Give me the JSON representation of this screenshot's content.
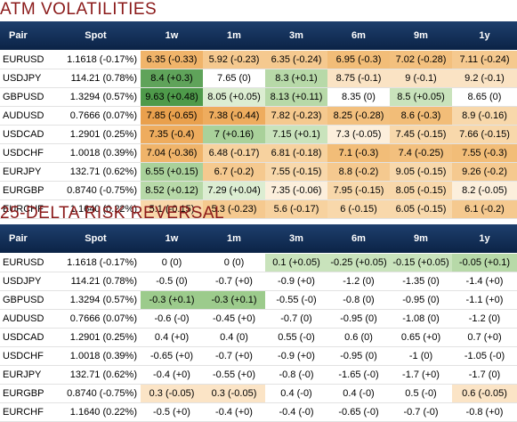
{
  "atm": {
    "title": "ATM VOLATILITIES",
    "headers": [
      "Pair",
      "Spot",
      "1w",
      "1m",
      "3m",
      "6m",
      "9m",
      "1y"
    ],
    "rows": [
      {
        "pair": "EURUSD",
        "spot": "1.1618 (-0.17%)",
        "cells": [
          {
            "text": "6.35 (-0.33)",
            "color": "#f0b46a"
          },
          {
            "text": "5.92 (-0.23)",
            "color": "#f5c98f"
          },
          {
            "text": "6.35 (-0.24)",
            "color": "#f5c98f"
          },
          {
            "text": "6.95 (-0.3)",
            "color": "#f2bd78"
          },
          {
            "text": "7.02 (-0.28)",
            "color": "#f3c07e"
          },
          {
            "text": "7.11 (-0.24)",
            "color": "#f5c98f"
          }
        ]
      },
      {
        "pair": "USDJPY",
        "spot": "114.21 (0.78%)",
        "cells": [
          {
            "text": "8.4 (+0.3)",
            "color": "#5fa35a"
          },
          {
            "text": "7.65 (0)",
            "color": "#ffffff"
          },
          {
            "text": "8.3 (+0.1)",
            "color": "#b7d9a8"
          },
          {
            "text": "8.75 (-0.1)",
            "color": "#fae3c4"
          },
          {
            "text": "9 (-0.1)",
            "color": "#fae3c4"
          },
          {
            "text": "9.2 (-0.1)",
            "color": "#fae3c4"
          }
        ]
      },
      {
        "pair": "GBPUSD",
        "spot": "1.3294 (0.57%)",
        "cells": [
          {
            "text": "9.63 (+0.48)",
            "color": "#4e9a4a"
          },
          {
            "text": "8.05 (+0.05)",
            "color": "#dcedd2"
          },
          {
            "text": "8.13 (+0.11)",
            "color": "#b7d9a8"
          },
          {
            "text": "8.35 (0)",
            "color": "#ffffff"
          },
          {
            "text": "8.5 (+0.05)",
            "color": "#c9e3bc"
          },
          {
            "text": "8.65 (0)",
            "color": "#ffffff"
          }
        ]
      },
      {
        "pair": "AUDUSD",
        "spot": "0.7666 (0.07%)",
        "cells": [
          {
            "text": "7.85 (-0.65)",
            "color": "#e9a04d"
          },
          {
            "text": "7.38 (-0.44)",
            "color": "#eeac5e"
          },
          {
            "text": "7.82 (-0.23)",
            "color": "#f5c98f"
          },
          {
            "text": "8.25 (-0.28)",
            "color": "#f3c07e"
          },
          {
            "text": "8.6 (-0.3)",
            "color": "#f2bd78"
          },
          {
            "text": "8.9 (-0.16)",
            "color": "#f8d8ab"
          }
        ]
      },
      {
        "pair": "USDCAD",
        "spot": "1.2901 (0.25%)",
        "cells": [
          {
            "text": "7.35 (-0.4)",
            "color": "#eeac5e"
          },
          {
            "text": "7 (+0.16)",
            "color": "#a9d19a"
          },
          {
            "text": "7.15 (+0.1)",
            "color": "#c9e3bc"
          },
          {
            "text": "7.3 (-0.05)",
            "color": "#fcefdc"
          },
          {
            "text": "7.45 (-0.15)",
            "color": "#f8d8ab"
          },
          {
            "text": "7.66 (-0.15)",
            "color": "#f8d8ab"
          }
        ]
      },
      {
        "pair": "USDCHF",
        "spot": "1.0018 (0.39%)",
        "cells": [
          {
            "text": "7.04 (-0.36)",
            "color": "#f0b46a"
          },
          {
            "text": "6.48 (-0.17)",
            "color": "#f7d29f"
          },
          {
            "text": "6.81 (-0.18)",
            "color": "#f7d29f"
          },
          {
            "text": "7.1 (-0.3)",
            "color": "#f2bd78"
          },
          {
            "text": "7.4 (-0.25)",
            "color": "#f3c07e"
          },
          {
            "text": "7.55 (-0.3)",
            "color": "#f2bd78"
          }
        ]
      },
      {
        "pair": "EURJPY",
        "spot": "132.71 (0.62%)",
        "cells": [
          {
            "text": "6.55 (+0.15)",
            "color": "#a9d19a"
          },
          {
            "text": "6.7 (-0.2)",
            "color": "#f5c98f"
          },
          {
            "text": "7.55 (-0.15)",
            "color": "#f8d8ab"
          },
          {
            "text": "8.8 (-0.2)",
            "color": "#f5c98f"
          },
          {
            "text": "9.05 (-0.15)",
            "color": "#f8d8ab"
          },
          {
            "text": "9.26 (-0.2)",
            "color": "#f5c98f"
          }
        ]
      },
      {
        "pair": "EURGBP",
        "spot": "0.8740 (-0.75%)",
        "cells": [
          {
            "text": "8.52 (+0.12)",
            "color": "#b7d9a8"
          },
          {
            "text": "7.29 (+0.04)",
            "color": "#dcedd2"
          },
          {
            "text": "7.35 (-0.06)",
            "color": "#fcefdc"
          },
          {
            "text": "7.95 (-0.15)",
            "color": "#f8d8ab"
          },
          {
            "text": "8.05 (-0.15)",
            "color": "#f8d8ab"
          },
          {
            "text": "8.2 (-0.05)",
            "color": "#fcefdc"
          }
        ]
      },
      {
        "pair": "EURCHF",
        "spot": "1.1640 (0.22%)",
        "cells": [
          {
            "text": "5.1 (-0.15)",
            "color": "#f8d8ab"
          },
          {
            "text": "5.3 (-0.23)",
            "color": "#f5c98f"
          },
          {
            "text": "5.6 (-0.17)",
            "color": "#f7d29f"
          },
          {
            "text": "6 (-0.15)",
            "color": "#f8d8ab"
          },
          {
            "text": "6.05 (-0.15)",
            "color": "#f8d8ab"
          },
          {
            "text": "6.1 (-0.2)",
            "color": "#f5c98f"
          }
        ]
      }
    ]
  },
  "rr": {
    "title": "25-DELTA RISK REVERSAL",
    "headers": [
      "Pair",
      "Spot",
      "1w",
      "1m",
      "3m",
      "6m",
      "9m",
      "1y"
    ],
    "rows": [
      {
        "pair": "EURUSD",
        "spot": "1.1618 (-0.17%)",
        "cells": [
          {
            "text": "0 (0)",
            "color": "#ffffff"
          },
          {
            "text": "0 (0)",
            "color": "#ffffff"
          },
          {
            "text": "0.1 (+0.05)",
            "color": "#c9e3bc"
          },
          {
            "text": "-0.25 (+0.05)",
            "color": "#c9e3bc"
          },
          {
            "text": "-0.15 (+0.05)",
            "color": "#c9e3bc"
          },
          {
            "text": "-0.05 (+0.1)",
            "color": "#b7d9a8"
          }
        ]
      },
      {
        "pair": "USDJPY",
        "spot": "114.21 (0.78%)",
        "cells": [
          {
            "text": "-0.5 (0)",
            "color": "#ffffff"
          },
          {
            "text": "-0.7 (+0)",
            "color": "#ffffff"
          },
          {
            "text": "-0.9 (+0)",
            "color": "#ffffff"
          },
          {
            "text": "-1.2 (0)",
            "color": "#ffffff"
          },
          {
            "text": "-1.35 (0)",
            "color": "#ffffff"
          },
          {
            "text": "-1.4 (+0)",
            "color": "#ffffff"
          }
        ]
      },
      {
        "pair": "GBPUSD",
        "spot": "1.3294 (0.57%)",
        "cells": [
          {
            "text": "-0.3 (+0.1)",
            "color": "#9ccb8c"
          },
          {
            "text": "-0.3 (+0.1)",
            "color": "#9ccb8c"
          },
          {
            "text": "-0.55 (-0)",
            "color": "#ffffff"
          },
          {
            "text": "-0.8 (0)",
            "color": "#ffffff"
          },
          {
            "text": "-0.95 (0)",
            "color": "#ffffff"
          },
          {
            "text": "-1.1 (+0)",
            "color": "#ffffff"
          }
        ]
      },
      {
        "pair": "AUDUSD",
        "spot": "0.7666 (0.07%)",
        "cells": [
          {
            "text": "-0.6 (-0)",
            "color": "#ffffff"
          },
          {
            "text": "-0.45 (+0)",
            "color": "#ffffff"
          },
          {
            "text": "-0.7 (0)",
            "color": "#ffffff"
          },
          {
            "text": "-0.95 (0)",
            "color": "#ffffff"
          },
          {
            "text": "-1.08 (0)",
            "color": "#ffffff"
          },
          {
            "text": "-1.2 (0)",
            "color": "#ffffff"
          }
        ]
      },
      {
        "pair": "USDCAD",
        "spot": "1.2901 (0.25%)",
        "cells": [
          {
            "text": "0.4 (+0)",
            "color": "#ffffff"
          },
          {
            "text": "0.4 (0)",
            "color": "#ffffff"
          },
          {
            "text": "0.55 (-0)",
            "color": "#ffffff"
          },
          {
            "text": "0.6 (0)",
            "color": "#ffffff"
          },
          {
            "text": "0.65 (+0)",
            "color": "#ffffff"
          },
          {
            "text": "0.7 (+0)",
            "color": "#ffffff"
          }
        ]
      },
      {
        "pair": "USDCHF",
        "spot": "1.0018 (0.39%)",
        "cells": [
          {
            "text": "-0.65 (+0)",
            "color": "#ffffff"
          },
          {
            "text": "-0.7 (+0)",
            "color": "#ffffff"
          },
          {
            "text": "-0.9 (+0)",
            "color": "#ffffff"
          },
          {
            "text": "-0.95 (0)",
            "color": "#ffffff"
          },
          {
            "text": "-1 (0)",
            "color": "#ffffff"
          },
          {
            "text": "-1.05 (-0)",
            "color": "#ffffff"
          }
        ]
      },
      {
        "pair": "EURJPY",
        "spot": "132.71 (0.62%)",
        "cells": [
          {
            "text": "-0.4 (+0)",
            "color": "#ffffff"
          },
          {
            "text": "-0.55 (+0)",
            "color": "#ffffff"
          },
          {
            "text": "-0.8 (-0)",
            "color": "#ffffff"
          },
          {
            "text": "-1.65 (-0)",
            "color": "#ffffff"
          },
          {
            "text": "-1.7 (+0)",
            "color": "#ffffff"
          },
          {
            "text": "-1.7 (0)",
            "color": "#ffffff"
          }
        ]
      },
      {
        "pair": "EURGBP",
        "spot": "0.8740 (-0.75%)",
        "cells": [
          {
            "text": "0.3 (-0.05)",
            "color": "#fbe4c6"
          },
          {
            "text": "0.3 (-0.05)",
            "color": "#fbe4c6"
          },
          {
            "text": "0.4 (-0)",
            "color": "#ffffff"
          },
          {
            "text": "0.4 (-0)",
            "color": "#ffffff"
          },
          {
            "text": "0.5 (-0)",
            "color": "#ffffff"
          },
          {
            "text": "0.6 (-0.05)",
            "color": "#fbe4c6"
          }
        ]
      },
      {
        "pair": "EURCHF",
        "spot": "1.1640 (0.22%)",
        "cells": [
          {
            "text": "-0.5 (+0)",
            "color": "#ffffff"
          },
          {
            "text": "-0.4 (+0)",
            "color": "#ffffff"
          },
          {
            "text": "-0.4 (-0)",
            "color": "#ffffff"
          },
          {
            "text": "-0.65 (-0)",
            "color": "#ffffff"
          },
          {
            "text": "-0.7 (-0)",
            "color": "#ffffff"
          },
          {
            "text": "-0.8 (+0)",
            "color": "#ffffff"
          }
        ]
      }
    ]
  }
}
